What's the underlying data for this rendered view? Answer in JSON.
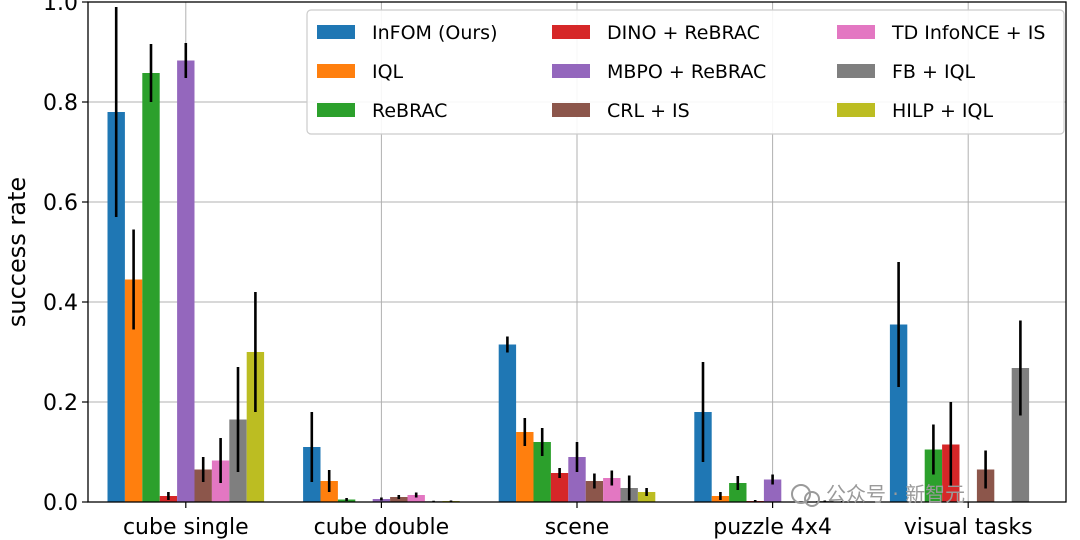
{
  "chart_data": {
    "type": "bar",
    "title": "",
    "xlabel": "",
    "ylabel": "success rate",
    "ylim": [
      0,
      1.0
    ],
    "yticks": [
      "0.0",
      "0.2",
      "0.4",
      "0.6",
      "0.8",
      "1.0"
    ],
    "grid": true,
    "legend_position": "top-right",
    "categories": [
      "cube single",
      "cube double",
      "scene",
      "puzzle 4x4",
      "visual tasks"
    ],
    "series": [
      {
        "name": "InFOM (Ours)",
        "color": "#1f77b4",
        "values": [
          0.78,
          0.11,
          0.315,
          0.18,
          0.355
        ],
        "err": [
          0.21,
          0.07,
          0.016,
          0.1,
          0.125
        ]
      },
      {
        "name": "IQL",
        "color": "#ff7f0e",
        "values": [
          0.445,
          0.042,
          0.14,
          0.012,
          null
        ],
        "err": [
          0.1,
          0.022,
          0.028,
          0.008,
          null
        ]
      },
      {
        "name": "ReBRAC",
        "color": "#2ca02c",
        "values": [
          0.858,
          0.005,
          0.12,
          0.038,
          0.105
        ],
        "err": [
          0.058,
          0.003,
          0.028,
          0.014,
          0.05
        ]
      },
      {
        "name": "DINO + ReBRAC",
        "color": "#d62728",
        "values": [
          0.012,
          null,
          0.058,
          0.002,
          0.115
        ],
        "err": [
          0.008,
          null,
          0.01,
          0.002,
          0.085
        ]
      },
      {
        "name": "MBPO + ReBRAC",
        "color": "#9467bd",
        "values": [
          0.883,
          0.006,
          0.09,
          0.045,
          null
        ],
        "err": [
          0.035,
          0.003,
          0.03,
          0.01,
          null
        ]
      },
      {
        "name": "CRL + IS",
        "color": "#8c564b",
        "values": [
          0.065,
          0.01,
          0.042,
          null,
          0.065
        ],
        "err": [
          0.025,
          0.004,
          0.015,
          null,
          0.038
        ]
      },
      {
        "name": "TD InfoNCE + IS",
        "color": "#e377c2",
        "values": [
          0.083,
          0.014,
          0.048,
          null,
          null
        ],
        "err": [
          0.045,
          0.005,
          0.015,
          null,
          null
        ]
      },
      {
        "name": "FB + IQL",
        "color": "#7f7f7f",
        "values": [
          0.165,
          0.0015,
          0.028,
          0.002,
          0.268
        ],
        "err": [
          0.105,
          0.001,
          0.025,
          0.001,
          0.095
        ]
      },
      {
        "name": "HILP + IQL",
        "color": "#bcbd22",
        "values": [
          0.3,
          0.002,
          0.02,
          0.001,
          null
        ],
        "err": [
          0.12,
          0.001,
          0.008,
          0.001,
          null
        ]
      }
    ]
  },
  "watermark": {
    "text": "公众号 · 新智元"
  }
}
